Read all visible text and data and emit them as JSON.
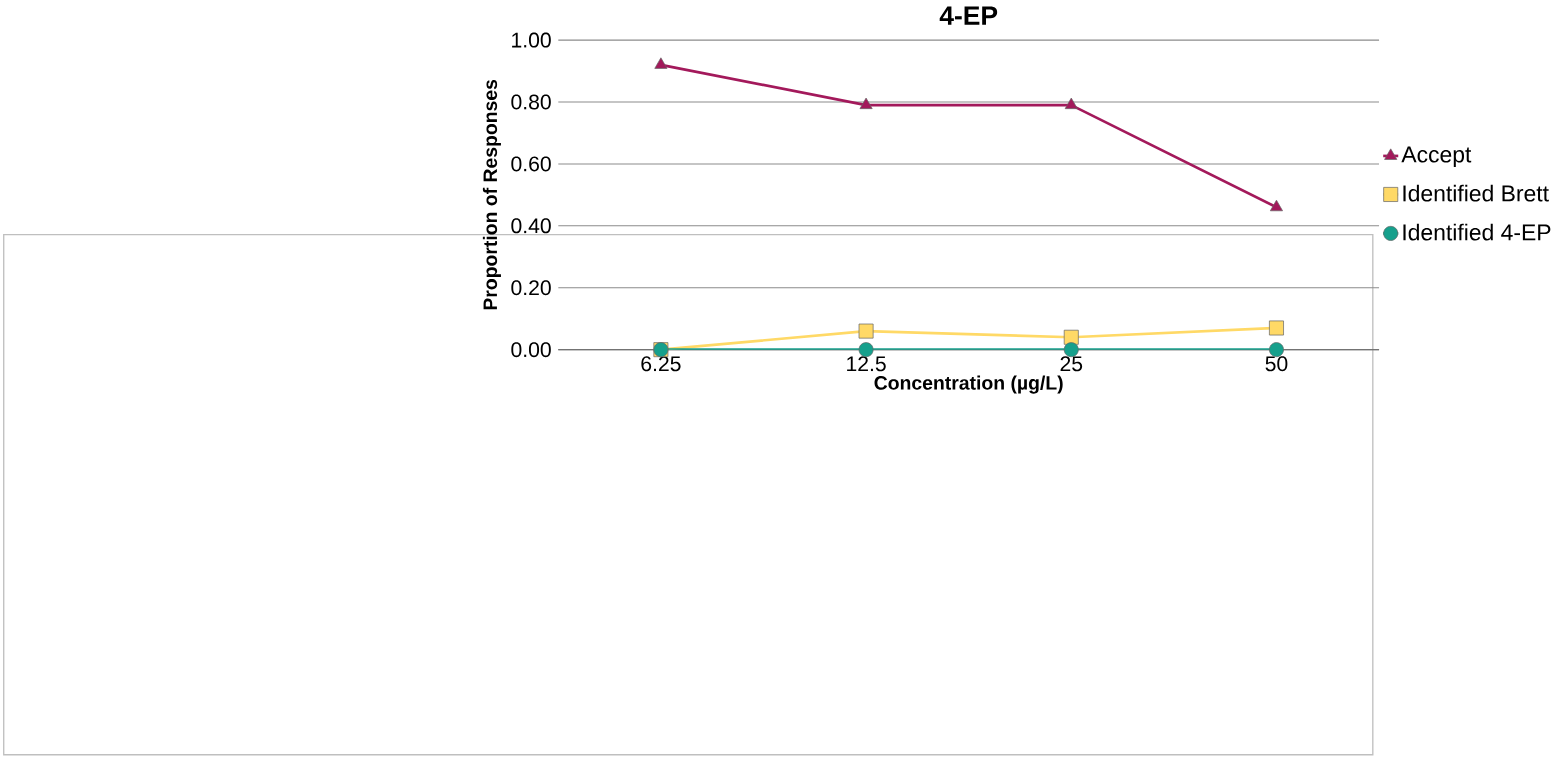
{
  "chart_data": {
    "type": "line",
    "title": "4-EP",
    "xlabel": "Concentration (µg/L)",
    "ylabel": "Proportion of Responses",
    "categories": [
      "6.25",
      "12.5",
      "25",
      "50"
    ],
    "series": [
      {
        "name": "Accept",
        "color": "#a3195b",
        "marker": "triangle",
        "values": [
          0.92,
          0.79,
          0.79,
          0.46
        ]
      },
      {
        "name": "Identified Brett",
        "color": "#ffd966",
        "marker": "square",
        "values": [
          0.0,
          0.06,
          0.04,
          0.07
        ]
      },
      {
        "name": "Identified 4-EP",
        "color": "#16a08c",
        "marker": "circle",
        "values": [
          0.0,
          0.0,
          0.0,
          0.0
        ]
      }
    ],
    "ylim": [
      0,
      1
    ],
    "yticks": [
      {
        "value": 0,
        "label": "0.00"
      },
      {
        "value": 0.2,
        "label": "0.20"
      },
      {
        "value": 0.4,
        "label": "0.40"
      },
      {
        "value": 0.6,
        "label": "0.60"
      },
      {
        "value": 0.8,
        "label": "0.80"
      },
      {
        "value": 1,
        "label": "1.00"
      }
    ],
    "grid": "y",
    "legend": "right",
    "line_style": "solid"
  }
}
